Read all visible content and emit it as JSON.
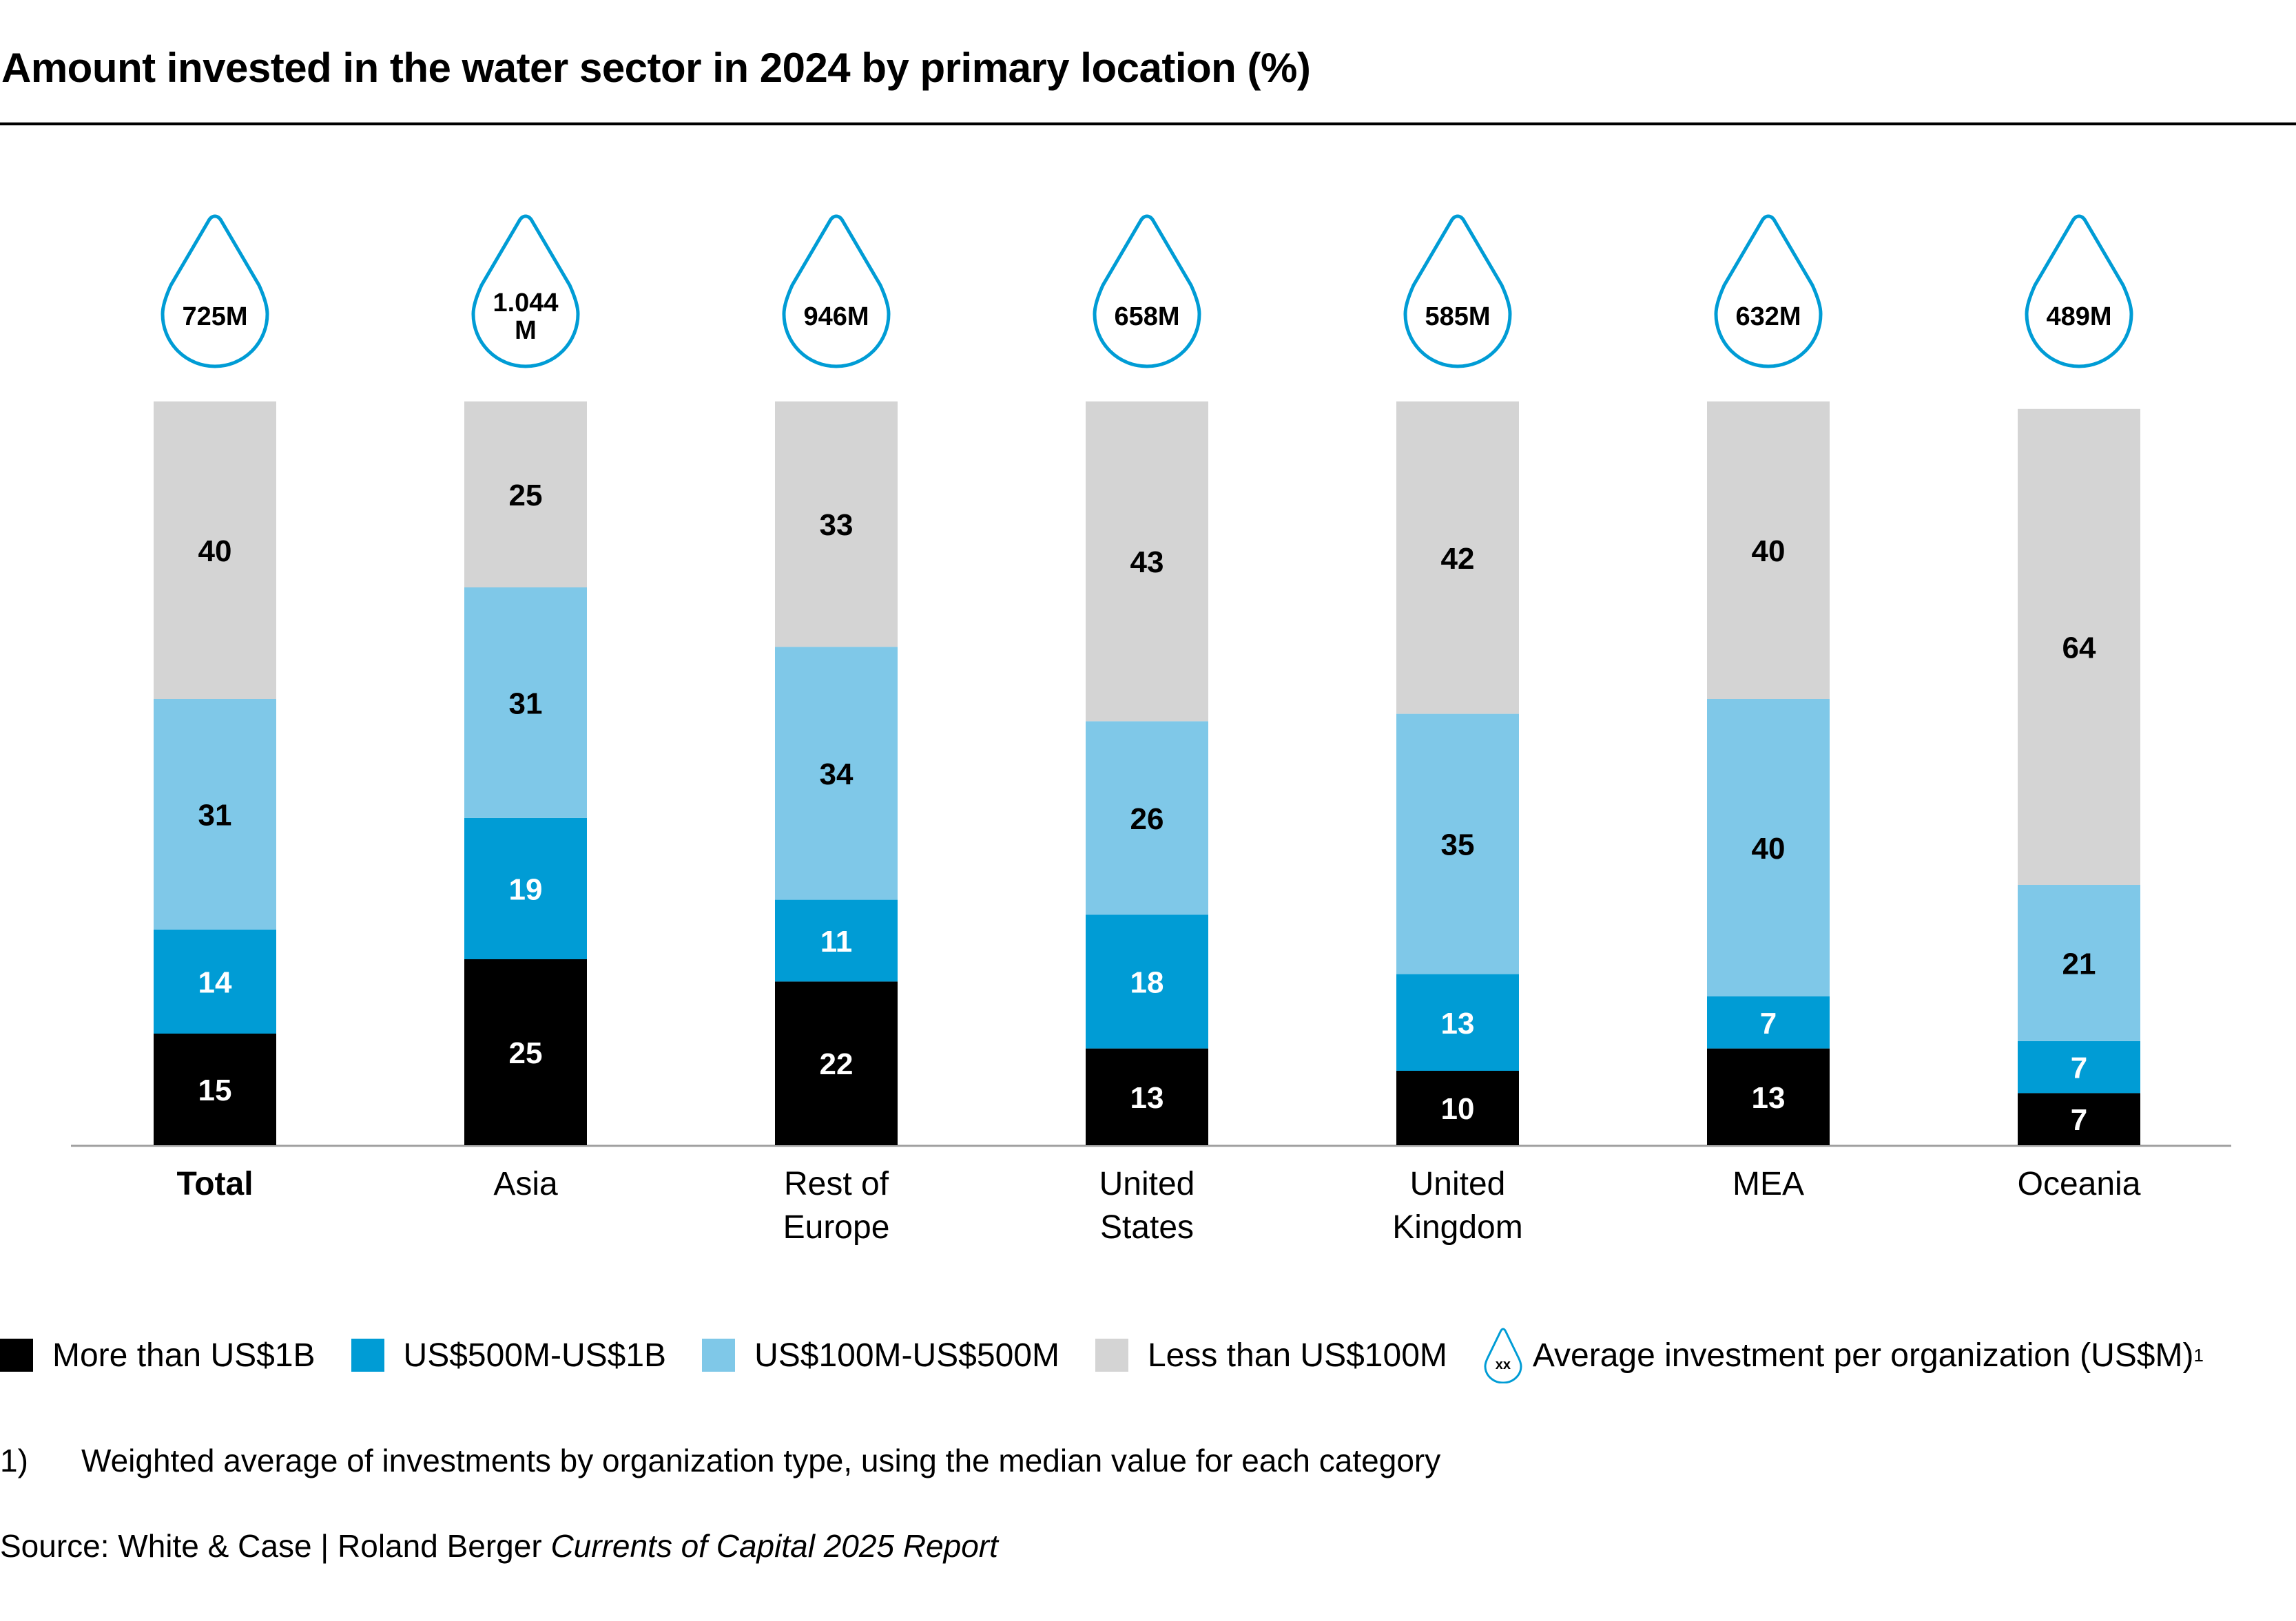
{
  "title": "Amount invested in the water sector in 2024 by primary location (%)",
  "colors": {
    "more_than_1b": "#000000",
    "500m_1b": "#009cd5",
    "100m_500m": "#7fc8e8",
    "less_than_100m": "#d4d4d4",
    "drop_outline": "#009cd5",
    "axis": "#a0a0a0"
  },
  "chart_data": {
    "type": "bar",
    "stacked": true,
    "title": "Amount invested in the water sector in 2024 by primary location (%)",
    "xlabel": "",
    "ylabel": "",
    "ylim": [
      0,
      100
    ],
    "grid": false,
    "legend_position": "bottom",
    "categories": [
      {
        "label": "Total",
        "lines": [
          "Total"
        ],
        "bold": true
      },
      {
        "label": "Asia",
        "lines": [
          "Asia"
        ],
        "bold": false
      },
      {
        "label": "Rest of Europe",
        "lines": [
          "Rest of",
          "Europe"
        ],
        "bold": false
      },
      {
        "label": "United States",
        "lines": [
          "United",
          "States"
        ],
        "bold": false
      },
      {
        "label": "United Kingdom",
        "lines": [
          "United",
          "Kingdom"
        ],
        "bold": false
      },
      {
        "label": "MEA",
        "lines": [
          "MEA"
        ],
        "bold": false
      },
      {
        "label": "Oceania",
        "lines": [
          "Oceania"
        ],
        "bold": false
      }
    ],
    "series": [
      {
        "name": "More than US$1B",
        "color": "#000000",
        "label_color": "#ffffff",
        "values": [
          15,
          25,
          22,
          13,
          10,
          13,
          7
        ]
      },
      {
        "name": "US$500M-US$1B",
        "color": "#009cd5",
        "label_color": "#ffffff",
        "values": [
          14,
          19,
          11,
          18,
          13,
          7,
          7
        ]
      },
      {
        "name": "US$100M-US$500M",
        "color": "#7fc8e8",
        "label_color": "#000000",
        "values": [
          31,
          31,
          34,
          26,
          35,
          40,
          21
        ]
      },
      {
        "name": "Less than US$100M",
        "color": "#d4d4d4",
        "label_color": "#000000",
        "values": [
          40,
          25,
          33,
          43,
          42,
          40,
          64
        ]
      }
    ],
    "average_investment": {
      "name": "Average investment per organization (US$M)",
      "values": [
        "725M",
        "1.044 M",
        "946M",
        "658M",
        "585M",
        "632M",
        "489M"
      ],
      "lines": [
        [
          "725M"
        ],
        [
          "1.044",
          "M"
        ],
        [
          "946M"
        ],
        [
          "658M"
        ],
        [
          "585M"
        ],
        [
          "632M"
        ],
        [
          "489M"
        ]
      ]
    }
  },
  "legend": {
    "items": [
      {
        "label": "More than US$1B",
        "color": "#000000"
      },
      {
        "label": "US$500M-US$1B",
        "color": "#009cd5"
      },
      {
        "label": "US$100M-US$500M",
        "color": "#7fc8e8"
      },
      {
        "label": "Less than US$100M",
        "color": "#d4d4d4"
      }
    ],
    "drop_placeholder": "xx",
    "drop_label": "Average investment per organization (US$M)",
    "drop_footnote_marker": "1"
  },
  "footnote": {
    "number": "1)",
    "text": "Weighted average of investments by organization type, using the median value for each category"
  },
  "source": {
    "prefix": "Source: White & Case | Roland Berger ",
    "italic": "Currents of Capital 2025 Report"
  }
}
